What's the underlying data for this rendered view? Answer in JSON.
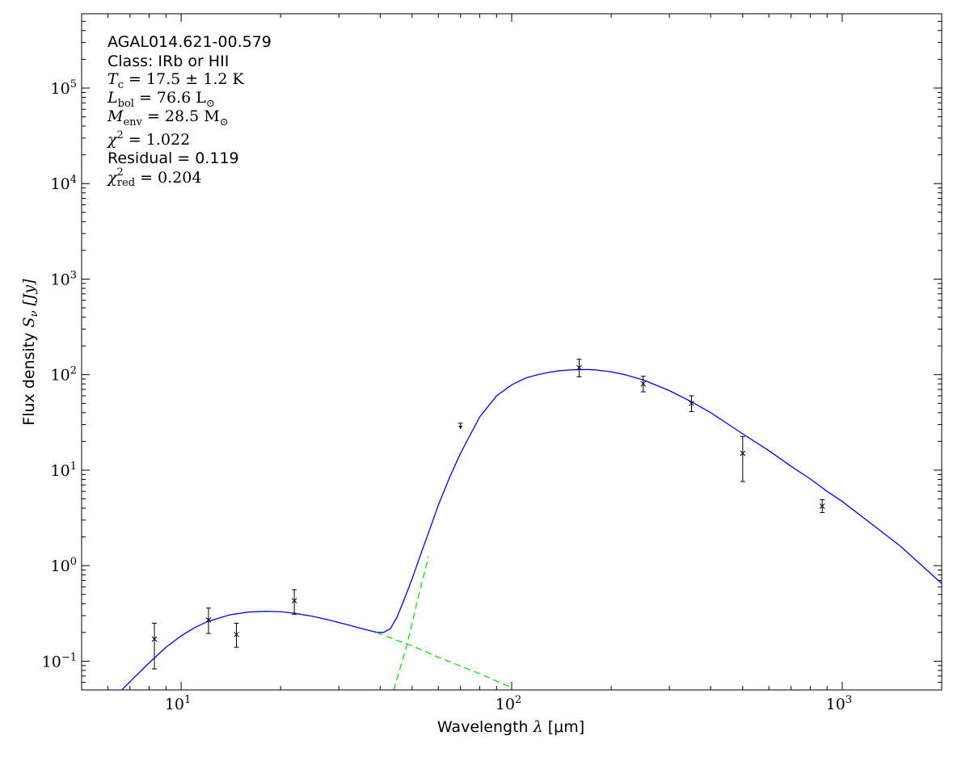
{
  "chart_data": {
    "type": "line",
    "xscale": "log",
    "yscale": "log",
    "xlim": [
      5,
      2000
    ],
    "ylim": [
      0.05,
      600000
    ],
    "xlabel_text": "Wavelength ",
    "xlabel_symbol": "λ",
    "xlabel_unit": " [μm]",
    "ylabel_text": "Flux density ",
    "ylabel_symbol": "S",
    "ylabel_sub": "ν",
    "ylabel_unit": " [Jy]",
    "x_ticks": [
      {
        "value": 10,
        "base": "10",
        "exp": "1"
      },
      {
        "value": 100,
        "base": "10",
        "exp": "2"
      },
      {
        "value": 1000,
        "base": "10",
        "exp": "3"
      }
    ],
    "y_ticks": [
      {
        "value": 0.1,
        "base": "10",
        "exp": "−1"
      },
      {
        "value": 1,
        "base": "10",
        "exp": "0"
      },
      {
        "value": 10,
        "base": "10",
        "exp": "1"
      },
      {
        "value": 100,
        "base": "10",
        "exp": "2"
      },
      {
        "value": 1000,
        "base": "10",
        "exp": "3"
      },
      {
        "value": 10000,
        "base": "10",
        "exp": "4"
      },
      {
        "value": 100000,
        "base": "10",
        "exp": "5"
      }
    ],
    "annotations": {
      "source_name": "AGAL014.621-00.579",
      "class_label": "Class: IRb or HII",
      "tc_value": " = 17.5 ± 1.2 K",
      "lbol_value": " = 76.6 L",
      "menv_value": " = 28.5 M",
      "chi2_value": " = 1.022",
      "residual": "Residual = 0.119",
      "chi2red_value": " = 0.204"
    },
    "series": [
      {
        "kind": "total",
        "color": "#0000ff",
        "style": "solid",
        "x": [
          6.5,
          7,
          8,
          9,
          10,
          11,
          12,
          14,
          16,
          18,
          20,
          22,
          25,
          28,
          32,
          36,
          39,
          41,
          43,
          45,
          47,
          50,
          53,
          56,
          60,
          65,
          70,
          80,
          90,
          100,
          110,
          120,
          130,
          140,
          150,
          160,
          170,
          180,
          200,
          220,
          250,
          300,
          350,
          400,
          500,
          600,
          700,
          800,
          900,
          1000,
          1200,
          1500,
          2000
        ],
        "y": [
          0.047,
          0.061,
          0.096,
          0.14,
          0.184,
          0.225,
          0.26,
          0.305,
          0.327,
          0.333,
          0.33,
          0.318,
          0.295,
          0.27,
          0.24,
          0.215,
          0.201,
          0.2,
          0.22,
          0.29,
          0.42,
          0.73,
          1.3,
          2.2,
          4.3,
          8.5,
          15,
          36,
          60,
          78,
          92,
          100,
          106,
          110,
          112,
          113,
          113,
          112,
          107,
          100,
          88,
          68,
          52,
          40,
          24,
          16,
          11,
          8.1,
          6,
          4.7,
          2.9,
          1.6,
          0.65
        ]
      },
      {
        "kind": "warm-component",
        "color": "#00dd00",
        "style": "dashed",
        "x": [
          39,
          45,
          50,
          60,
          70,
          80,
          90,
          100
        ],
        "y": [
          0.2,
          0.165,
          0.145,
          0.11,
          0.089,
          0.074,
          0.062,
          0.053
        ]
      },
      {
        "kind": "cold-component",
        "color": "#00dd00",
        "style": "dashed",
        "x": [
          44,
          46,
          48,
          50,
          52,
          54,
          56
        ],
        "y": [
          0.05,
          0.085,
          0.14,
          0.25,
          0.45,
          0.75,
          1.25
        ]
      }
    ],
    "points": [
      {
        "x": 8.3,
        "y": 0.17,
        "ylo": 0.083,
        "yhi": 0.25
      },
      {
        "x": 12.1,
        "y": 0.27,
        "ylo": 0.195,
        "yhi": 0.36
      },
      {
        "x": 14.7,
        "y": 0.19,
        "ylo": 0.14,
        "yhi": 0.25
      },
      {
        "x": 22,
        "y": 0.43,
        "ylo": 0.31,
        "yhi": 0.56
      },
      {
        "x": 160,
        "y": 118,
        "ylo": 95,
        "yhi": 145
      },
      {
        "x": 250,
        "y": 80,
        "ylo": 66,
        "yhi": 96
      },
      {
        "x": 350,
        "y": 50,
        "ylo": 41,
        "yhi": 60
      },
      {
        "x": 500,
        "y": 15,
        "ylo": 7.6,
        "yhi": 22.5
      },
      {
        "x": 870,
        "y": 4.2,
        "ylo": 3.6,
        "yhi": 4.9
      }
    ],
    "upper_limits": [
      {
        "x": 70,
        "y": 31,
        "tip": 27
      }
    ],
    "grid": false,
    "legend": "none"
  }
}
